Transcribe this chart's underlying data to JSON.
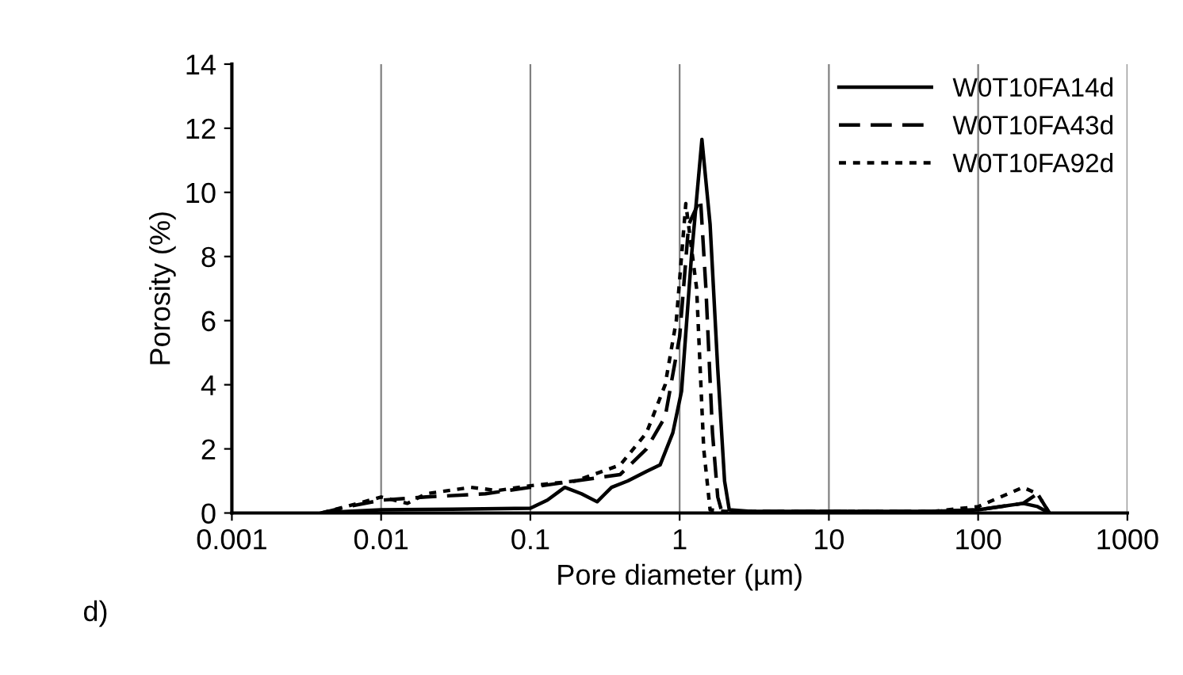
{
  "chart_data": {
    "type": "line",
    "xlabel": "Pore diameter (µm)",
    "ylabel": "Porosity (%)",
    "log": "x",
    "xlim": [
      0.001,
      1000
    ],
    "xticks": [
      {
        "value": 0.001,
        "label": "0.001"
      },
      {
        "value": 0.01,
        "label": "0.01"
      },
      {
        "value": 0.1,
        "label": "0.1"
      },
      {
        "value": 1,
        "label": "1"
      },
      {
        "value": 10,
        "label": "10"
      },
      {
        "value": 100,
        "label": "100"
      },
      {
        "value": 1000,
        "label": "1000"
      }
    ],
    "ylim": [
      0,
      14
    ],
    "yticks": [
      0,
      2,
      4,
      6,
      8,
      10,
      12,
      14
    ],
    "grid": "x",
    "legend": "top right",
    "annotations": [
      "d)"
    ],
    "series": [
      {
        "name": "W0T10FA14d",
        "color": "#000000",
        "line_style": "solid",
        "x": [
          0.004,
          0.006,
          0.01,
          0.03,
          0.1,
          0.13,
          0.17,
          0.22,
          0.28,
          0.35,
          0.45,
          0.6,
          0.74,
          0.9,
          1.03,
          1.2,
          1.41,
          1.6,
          1.8,
          2.0,
          2.15,
          3,
          10,
          50,
          100,
          200,
          250,
          300
        ],
        "values": [
          0,
          0.05,
          0.1,
          0.12,
          0.15,
          0.4,
          0.8,
          0.6,
          0.35,
          0.8,
          1.0,
          1.3,
          1.5,
          2.5,
          3.8,
          8.0,
          11.65,
          9.0,
          4.5,
          1.0,
          0.1,
          0.05,
          0.05,
          0.05,
          0.1,
          0.3,
          0.2,
          0
        ]
      },
      {
        "name": "W0T10FA43d",
        "color": "#000000",
        "line_style": "dashed",
        "x": [
          0.004,
          0.006,
          0.01,
          0.02,
          0.05,
          0.1,
          0.2,
          0.4,
          0.6,
          0.8,
          1.0,
          1.15,
          1.38,
          1.5,
          1.66,
          1.8,
          1.9,
          2.2,
          10,
          50,
          100,
          200,
          250,
          300
        ],
        "values": [
          0,
          0.2,
          0.4,
          0.5,
          0.6,
          0.8,
          1.0,
          1.2,
          2.0,
          3.0,
          5.5,
          9.0,
          9.8,
          7.0,
          2.5,
          0.5,
          0.1,
          0.05,
          0.05,
          0.05,
          0.1,
          0.3,
          0.6,
          0
        ]
      },
      {
        "name": "W0T10FA92d",
        "color": "#000000",
        "line_style": "dotted",
        "x": [
          0.004,
          0.007,
          0.01,
          0.015,
          0.02,
          0.04,
          0.06,
          0.1,
          0.2,
          0.4,
          0.6,
          0.8,
          0.95,
          1.1,
          1.3,
          1.45,
          1.6,
          2,
          10,
          50,
          100,
          200,
          250,
          300
        ],
        "values": [
          0,
          0.3,
          0.5,
          0.3,
          0.6,
          0.8,
          0.7,
          0.85,
          1.0,
          1.5,
          2.5,
          4.0,
          6.0,
          9.65,
          7.0,
          2.0,
          0.1,
          0.05,
          0.05,
          0.05,
          0.2,
          0.8,
          0.6,
          0
        ]
      }
    ]
  }
}
